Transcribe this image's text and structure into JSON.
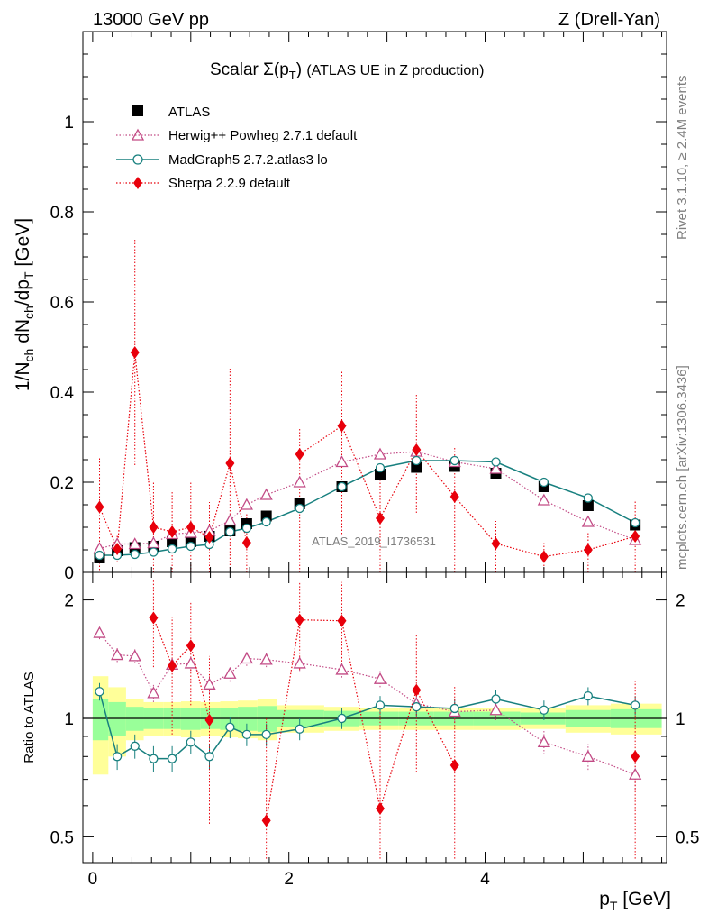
{
  "header": {
    "energy": "13000 GeV pp",
    "process": "Z (Drell-Yan)"
  },
  "side": {
    "rivet": "Rivet 3.1.10, ≥ 2.4M events",
    "mcplots": "mcplots.cern.ch [arXiv:1306.3436]"
  },
  "main": {
    "title": "Scalar Σ(p_T) (ATLAS UE in Z production)",
    "ylabel": "1/N_ch dN_ch/dp_T [GeV]",
    "analysis": "ATLAS_2019_I1736531",
    "yticks": [
      "0",
      "0.2",
      "0.4",
      "0.6",
      "0.8",
      "1"
    ]
  },
  "ratio": {
    "ylabel": "Ratio to ATLAS",
    "yticks_left": [
      "0.5",
      "1",
      "2"
    ],
    "yticks_right": [
      "0.5",
      "1",
      "2"
    ]
  },
  "xaxis": {
    "label": "p_T [GeV]",
    "ticks": [
      "0",
      "2",
      "4"
    ]
  },
  "chart_data": [
    {
      "type": "scatter",
      "panel": "main",
      "xlabel": "p_T [GeV]",
      "ylabel": "1/N_ch dN_ch/dp_T [GeV]",
      "xlim": [
        -0.1,
        5.85
      ],
      "ylim": [
        0,
        1.2
      ],
      "x": [
        0.07,
        0.25,
        0.43,
        0.62,
        0.81,
        1.0,
        1.19,
        1.4,
        1.57,
        1.77,
        2.11,
        2.54,
        2.93,
        3.3,
        3.69,
        4.11,
        4.6,
        5.05,
        5.53
      ],
      "legend_position": "top-left",
      "series": [
        {
          "name": "ATLAS",
          "color": "#000000",
          "marker": "square",
          "values": [
            0.032,
            0.048,
            0.055,
            0.058,
            0.068,
            0.068,
            0.08,
            0.092,
            0.108,
            0.125,
            0.152,
            0.19,
            0.218,
            0.233,
            0.235,
            0.22,
            0.19,
            0.148,
            0.105
          ]
        },
        {
          "name": "Herwig++ Powheg 2.7.1 default",
          "color": "#c24a85",
          "marker": "triangle-open",
          "line": "dotted",
          "values": [
            0.053,
            0.063,
            0.063,
            0.065,
            0.085,
            0.088,
            0.092,
            0.115,
            0.15,
            0.172,
            0.2,
            0.245,
            0.262,
            0.268,
            0.245,
            0.23,
            0.16,
            0.112,
            0.072
          ]
        },
        {
          "name": "MadGraph5 2.7.2.atlas3 lo",
          "color": "#18807f",
          "marker": "circle-open",
          "line": "solid",
          "values": [
            0.038,
            0.038,
            0.04,
            0.045,
            0.052,
            0.058,
            0.062,
            0.09,
            0.098,
            0.112,
            0.142,
            0.19,
            0.232,
            0.248,
            0.248,
            0.245,
            0.2,
            0.165,
            0.11
          ]
        },
        {
          "name": "Sherpa 2.2.9 default",
          "color": "#e8000b",
          "marker": "diamond",
          "line": "dotted",
          "values": [
            0.145,
            0.052,
            0.488,
            0.1,
            0.09,
            0.1,
            0.078,
            0.242,
            0.066,
            null,
            0.262,
            0.325,
            0.12,
            0.272,
            0.168,
            0.064,
            0.035,
            0.05,
            0.08
          ],
          "err_low": [
            0.14,
            0.03,
            0.25,
            0.1,
            0.09,
            0.1,
            0.078,
            0.24,
            0.066,
            null,
            0.262,
            0.24,
            0.12,
            0.14,
            0.168,
            0.064,
            0.035,
            0.05,
            0.08
          ],
          "err_high": [
            0.11,
            0.03,
            0.25,
            0.1,
            0.09,
            0.1,
            0.078,
            0.21,
            0.066,
            null,
            0.06,
            0.12,
            0.11,
            0.125,
            0.11,
            0.05,
            0.03,
            0.04,
            0.08
          ]
        }
      ]
    },
    {
      "type": "scatter",
      "panel": "ratio",
      "ylabel": "Ratio to ATLAS",
      "ylim": [
        0.43,
        2.35
      ],
      "scale": "log",
      "x": [
        0.07,
        0.25,
        0.43,
        0.62,
        0.81,
        1.0,
        1.19,
        1.4,
        1.57,
        1.77,
        2.11,
        2.54,
        2.93,
        3.3,
        3.69,
        4.11,
        4.6,
        5.05,
        5.53
      ],
      "bands": {
        "edges": [
          0,
          0.16,
          0.34,
          0.52,
          0.72,
          0.9,
          1.1,
          1.3,
          1.48,
          1.68,
          1.88,
          2.36,
          2.72,
          3.12,
          3.48,
          3.88,
          4.36,
          4.82,
          5.28,
          5.8
        ],
        "green_halfwidth": [
          0.12,
          0.1,
          0.07,
          0.06,
          0.06,
          0.065,
          0.06,
          0.065,
          0.07,
          0.075,
          0.05,
          0.045,
          0.04,
          0.04,
          0.04,
          0.04,
          0.035,
          0.05,
          0.055
        ],
        "yellow_halfwidth": [
          0.28,
          0.2,
          0.12,
          0.1,
          0.1,
          0.105,
          0.1,
          0.105,
          0.11,
          0.12,
          0.08,
          0.07,
          0.065,
          0.065,
          0.065,
          0.065,
          0.06,
          0.08,
          0.09
        ]
      },
      "series": [
        {
          "name": "Herwig++ Powheg 2.7.1 default",
          "values": [
            1.65,
            1.45,
            1.44,
            1.16,
            1.37,
            1.38,
            1.22,
            1.3,
            1.42,
            1.41,
            1.38,
            1.33,
            1.26,
            1.09,
            1.04,
            1.05,
            0.87,
            0.8,
            0.72
          ]
        },
        {
          "name": "MadGraph5 2.7.2.atlas3 lo",
          "values": [
            1.17,
            0.8,
            0.85,
            0.79,
            0.79,
            0.87,
            0.8,
            0.95,
            0.91,
            0.91,
            0.94,
            1.0,
            1.08,
            1.07,
            1.06,
            1.12,
            1.05,
            1.14,
            1.08
          ]
        },
        {
          "name": "Sherpa 2.2.9 default",
          "values": [
            null,
            null,
            null,
            1.8,
            1.36,
            1.53,
            0.99,
            null,
            null,
            0.55,
            1.78,
            1.77,
            0.59,
            1.18,
            0.76,
            null,
            null,
            null,
            0.8
          ]
        }
      ]
    }
  ]
}
